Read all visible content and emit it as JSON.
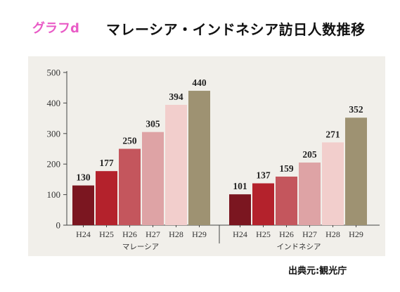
{
  "header": {
    "graph_tag": "グラフd",
    "title": "マレーシア・インドネシア訪日人数推移"
  },
  "source": "出典元:観光庁",
  "colors": {
    "panel_background": "#f1efea",
    "bars": [
      "#7b1620",
      "#b4222c",
      "#c4565d",
      "#dea3a5",
      "#f2cecc",
      "#9e9272"
    ]
  },
  "chart_data": {
    "type": "bar",
    "title": "マレーシア・インドネシア訪日人数推移",
    "xlabel": "",
    "ylabel": "",
    "ylim": [
      0,
      500
    ],
    "yticks": [
      0,
      100,
      200,
      300,
      400,
      500
    ],
    "categories": [
      "H24",
      "H25",
      "H26",
      "H27",
      "H28",
      "H29"
    ],
    "groups": [
      {
        "name": "マレーシア",
        "values": [
          130,
          177,
          250,
          305,
          394,
          440
        ]
      },
      {
        "name": "インドネシア",
        "values": [
          101,
          137,
          159,
          205,
          271,
          352
        ]
      }
    ],
    "grid": false,
    "legend": "none"
  }
}
